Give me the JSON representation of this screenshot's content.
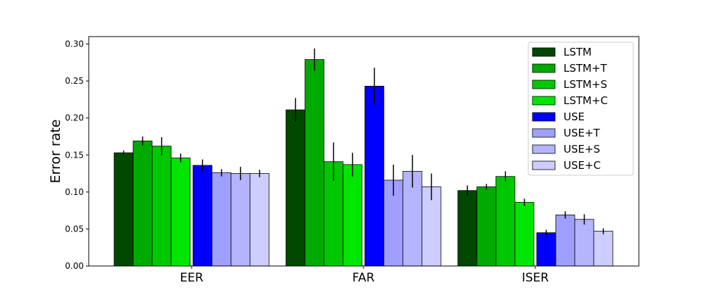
{
  "chart_data": {
    "type": "bar",
    "categories": [
      "EER",
      "FAR",
      "ISER"
    ],
    "ylabel": "Error rate",
    "xlabel": "",
    "ylim": [
      0,
      0.31
    ],
    "yticks": [
      0.0,
      0.05,
      0.1,
      0.15,
      0.2,
      0.25,
      0.3
    ],
    "ytick_labels": [
      "0.00",
      "0.05",
      "0.10",
      "0.15",
      "0.20",
      "0.25",
      "0.30"
    ],
    "legend_placement": "top-right",
    "grid": false,
    "series": [
      {
        "name": "LSTM",
        "color": "#004800",
        "values": [
          0.153,
          0.211,
          0.102
        ],
        "errors": [
          0.003,
          0.016,
          0.007
        ]
      },
      {
        "name": "LSTM+T",
        "color": "#00aa00",
        "values": [
          0.169,
          0.279,
          0.107
        ],
        "errors": [
          0.006,
          0.015,
          0.004
        ]
      },
      {
        "name": "LSTM+S",
        "color": "#00c800",
        "values": [
          0.162,
          0.141,
          0.121
        ],
        "errors": [
          0.012,
          0.026,
          0.007
        ]
      },
      {
        "name": "LSTM+C",
        "color": "#00e600",
        "values": [
          0.146,
          0.137,
          0.086
        ],
        "errors": [
          0.006,
          0.016,
          0.005
        ]
      },
      {
        "name": "USE",
        "color": "#0000ff",
        "values": [
          0.136,
          0.243,
          0.045
        ],
        "errors": [
          0.008,
          0.025,
          0.004
        ]
      },
      {
        "name": "USE+T",
        "color": "#9f9fff",
        "values": [
          0.126,
          0.116,
          0.069
        ],
        "errors": [
          0.005,
          0.021,
          0.005
        ]
      },
      {
        "name": "USE+S",
        "color": "#b4b4ff",
        "values": [
          0.125,
          0.128,
          0.063
        ],
        "errors": [
          0.009,
          0.022,
          0.007
        ]
      },
      {
        "name": "USE+C",
        "color": "#cdcdff",
        "values": [
          0.125,
          0.107,
          0.047
        ],
        "errors": [
          0.005,
          0.018,
          0.004
        ]
      }
    ]
  }
}
